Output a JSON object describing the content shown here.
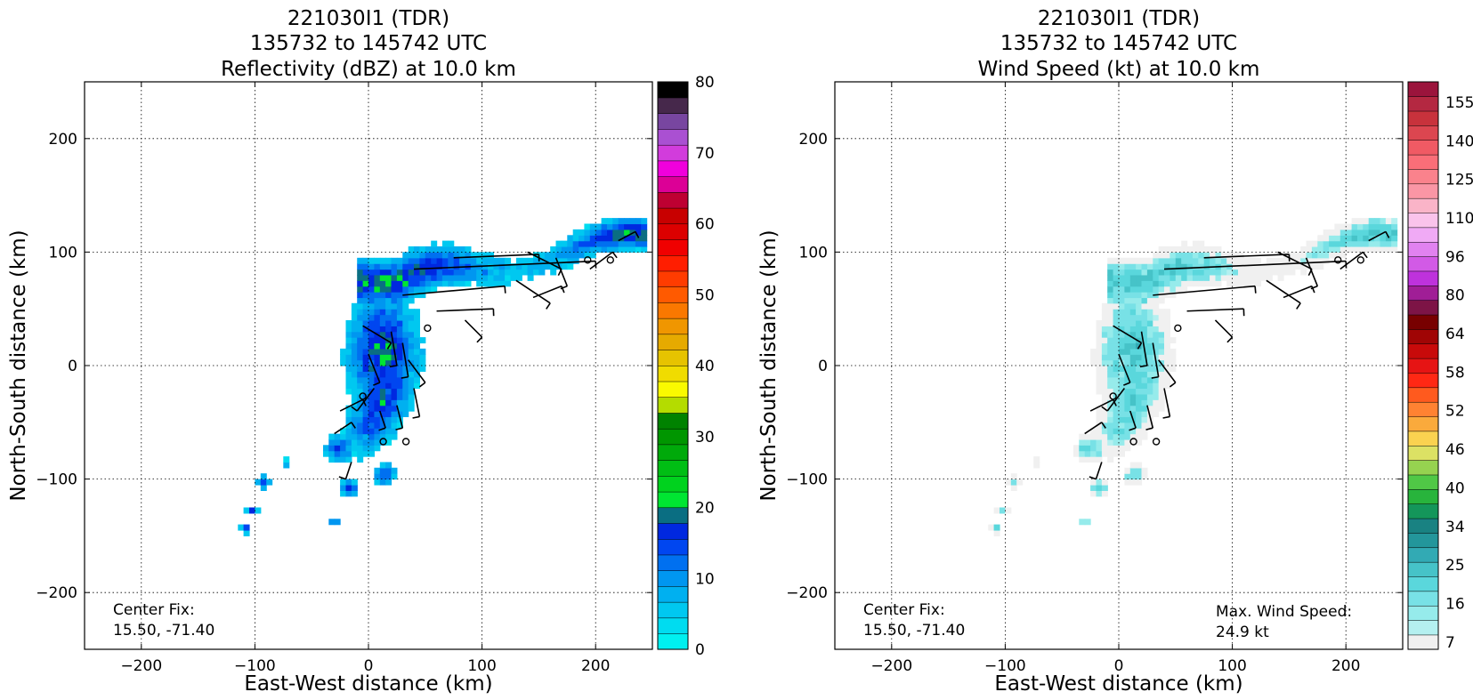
{
  "chart_data": [
    {
      "type": "heatmap",
      "panel": "left",
      "title": [
        "221030I1 (TDR)",
        "135732 to 145742 UTC",
        "Reflectivity (dBZ) at 10.0 km"
      ],
      "xlabel": "East-West distance (km)",
      "ylabel": "North-South distance (km)",
      "xlim": [
        -250,
        250
      ],
      "ylim": [
        -250,
        250
      ],
      "x_ticks": [
        -200,
        -100,
        0,
        100,
        200
      ],
      "y_ticks": [
        -200,
        -100,
        0,
        100,
        200
      ],
      "x_tick_labels": [
        "−200",
        "−100",
        "0",
        "100",
        "200"
      ],
      "y_tick_labels": [
        "−200",
        "−100",
        "0",
        "100",
        "200"
      ],
      "grid": true,
      "colorbar": {
        "min": 0,
        "max": 80,
        "step": 2.5,
        "ticks": [
          0,
          10,
          20,
          30,
          40,
          50,
          60,
          70,
          80
        ],
        "colors": [
          "#00f0f0",
          "#00dcf0",
          "#00c8f0",
          "#00b0f0",
          "#0096f0",
          "#0070f0",
          "#0046f0",
          "#0028e0",
          "#0a6e82",
          "#00e632",
          "#00d21e",
          "#00be14",
          "#00aa0a",
          "#009600",
          "#008200",
          "#b4dc00",
          "#fafa00",
          "#f0dc00",
          "#e6c300",
          "#e6aa00",
          "#f09600",
          "#fa7800",
          "#ff5a00",
          "#ff3c00",
          "#ff1e00",
          "#f00000",
          "#dc0000",
          "#c80000",
          "#be0032",
          "#dc0096",
          "#f000dc",
          "#d23cdc",
          "#aa50d2",
          "#7846a0",
          "#46284b",
          "#000000"
        ]
      },
      "annotations": [
        "Center Fix:",
        "15.50, -71.40"
      ]
    },
    {
      "type": "heatmap",
      "panel": "right",
      "title": [
        "221030I1 (TDR)",
        "135732 to 145742 UTC",
        "Wind Speed (kt) at 10.0 km"
      ],
      "xlabel": "East-West distance (km)",
      "ylabel": "North-South distance (km)",
      "xlim": [
        -250,
        250
      ],
      "ylim": [
        -250,
        250
      ],
      "x_ticks": [
        -200,
        -100,
        0,
        100,
        200
      ],
      "y_ticks": [
        -200,
        -100,
        0,
        100,
        200
      ],
      "x_tick_labels": [
        "−200",
        "−100",
        "0",
        "100",
        "200"
      ],
      "y_tick_labels": [
        "−200",
        "−100",
        "0",
        "100",
        "200"
      ],
      "grid": true,
      "colorbar": {
        "labels": [
          "7",
          "16",
          "25",
          "34",
          "40",
          "46",
          "52",
          "58",
          "64",
          "80",
          "96",
          "110",
          "125",
          "140",
          "155"
        ],
        "colors": [
          "#f0f0f0",
          "#b4f0f0",
          "#96ebeb",
          "#78e1e6",
          "#5ad7dc",
          "#46c3c8",
          "#32aab4",
          "#23969b",
          "#198282",
          "#14965a",
          "#28b43c",
          "#50c846",
          "#96d250",
          "#dce164",
          "#fad250",
          "#faaa3c",
          "#ff8232",
          "#ff5a1e",
          "#ff2814",
          "#e61414",
          "#c80a0a",
          "#a00505",
          "#780000",
          "#7d1446",
          "#a01e96",
          "#be32dc",
          "#d25ae6",
          "#e182f0",
          "#f0aaf5",
          "#fac3eb",
          "#fab4c8",
          "#fa96a5",
          "#fa828c",
          "#fa6e78",
          "#f05a64",
          "#dc4650",
          "#c8323c",
          "#b42841",
          "#9b143c"
        ]
      },
      "annotations": [
        "Center Fix:",
        "15.50, -71.40",
        "Max. Wind Speed:",
        "24.9 kt"
      ]
    }
  ]
}
